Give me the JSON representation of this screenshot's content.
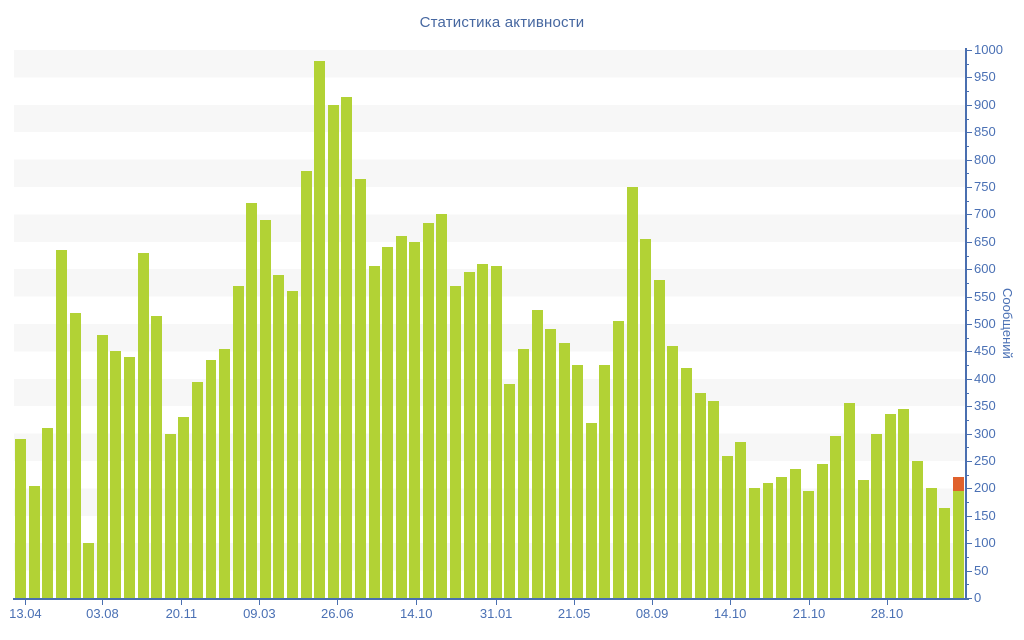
{
  "title": "Статистика активности",
  "colors": {
    "bar_green": "#b2d235",
    "bar_orange": "#e0612d",
    "axis_blue": "#4a6fb0",
    "label_blue": "#4a70b4",
    "title_blue": "#4667a0",
    "stripe_gray": "#f7f7f7"
  },
  "chart_data": {
    "type": "bar",
    "title": "Статистика активности",
    "xlabel": "",
    "ylabel": "Сообщений",
    "ylim": [
      0,
      1000
    ],
    "y_tick_step": 50,
    "y_ticks": [
      0,
      50,
      100,
      150,
      200,
      250,
      300,
      350,
      400,
      450,
      500,
      550,
      600,
      650,
      700,
      750,
      800,
      850,
      900,
      950,
      1000
    ],
    "grid": "horizontal-stripes",
    "legend": "none",
    "values": [
      290,
      205,
      310,
      635,
      520,
      100,
      480,
      450,
      440,
      630,
      515,
      300,
      330,
      395,
      435,
      455,
      570,
      720,
      690,
      590,
      560,
      780,
      980,
      900,
      915,
      765,
      605,
      640,
      660,
      650,
      685,
      700,
      570,
      595,
      610,
      605,
      390,
      455,
      525,
      490,
      465,
      425,
      320,
      425,
      505,
      750,
      655,
      580,
      460,
      420,
      375,
      360,
      260,
      285,
      200,
      210,
      220,
      235,
      195,
      245,
      295,
      355,
      215,
      300,
      335,
      345,
      250,
      200,
      165,
      220
    ],
    "highlight_last_bar": {
      "green_value": 195,
      "total_value": 220,
      "color": "#e0612d"
    },
    "x_labels": [
      {
        "text": "13.04",
        "pct": 1.2
      },
      {
        "text": "03.08",
        "pct": 9.3
      },
      {
        "text": "20.11",
        "pct": 17.6
      },
      {
        "text": "09.03",
        "pct": 25.8
      },
      {
        "text": "26.06",
        "pct": 34.0
      },
      {
        "text": "14.10",
        "pct": 42.3
      },
      {
        "text": "31.01",
        "pct": 50.7
      },
      {
        "text": "21.05",
        "pct": 58.9
      },
      {
        "text": "08.09",
        "pct": 67.1
      },
      {
        "text": "14.10",
        "pct": 75.3
      },
      {
        "text": "21.10",
        "pct": 83.6
      },
      {
        "text": "28.10",
        "pct": 91.8
      }
    ]
  }
}
